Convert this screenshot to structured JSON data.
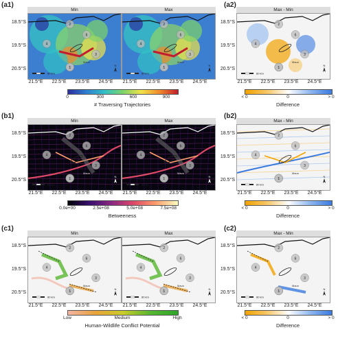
{
  "rows": [
    {
      "label_left": "(a1)",
      "label_right": "(a2)",
      "strip_min": "Min",
      "strip_max": "Max",
      "strip_diff": "Max - Min",
      "legend_title": "# Traversing Trajectories",
      "legend_ticks": [
        "0",
        "300",
        "600",
        "900"
      ],
      "diff_title": "Difference",
      "diff_ticks": [
        "< 0",
        "0",
        "> 0"
      ],
      "style": "traj"
    },
    {
      "label_left": "(b1)",
      "label_right": "(b2)",
      "strip_min": "Min",
      "strip_max": "Max",
      "strip_diff": "Max - Min",
      "legend_title": "Betweeness",
      "legend_ticks": [
        "0.0e+00",
        "2.5e+08",
        "5.0e+08",
        "7.5e+08"
      ],
      "diff_title": "Difference",
      "diff_ticks": [
        "< 0",
        "0",
        "> 0"
      ],
      "style": "betw"
    },
    {
      "label_left": "(c1)",
      "label_right": "(c2)",
      "strip_min": "Min",
      "strip_max": "Max",
      "strip_diff": "Max - Min",
      "legend_title": "Human-Wildlife Conflict Potential",
      "legend_ticks": [
        "Low",
        "Medium",
        "High"
      ],
      "diff_title": "Difference",
      "diff_ticks": [
        "< 0",
        "0",
        "> 0"
      ],
      "style": "hwc"
    }
  ],
  "axes": {
    "y_ticks": [
      "18.5°S",
      "19.5°S",
      "20.5°S"
    ],
    "x_ticks": [
      "21.5°E",
      "22.5°E",
      "23.5°E",
      "24.5°E"
    ]
  },
  "map": {
    "circle_labels": [
      "2",
      "4",
      "6",
      "3",
      "5",
      "1"
    ],
    "scale_text": "80 km",
    "north": "N",
    "place_text": "Maun"
  },
  "colors": {
    "traj_gradient": [
      "#2b2f9e",
      "#2f7fd0",
      "#31c0c6",
      "#7ed36a",
      "#f0e34a",
      "#f08a2a",
      "#c21c2e"
    ],
    "betw_gradient": [
      "#000004",
      "#3b0f70",
      "#8c2981",
      "#de4968",
      "#fe9f6d",
      "#fcfdbf"
    ],
    "hwc_gradient": [
      "#f2b5a5",
      "#e8a23a",
      "#c9cc2a",
      "#57b730",
      "#2ea52a"
    ],
    "diff_gradient": [
      "#f2a300",
      "#f6c766",
      "#ffffff",
      "#8fb8ef",
      "#3a7ae0"
    ]
  }
}
